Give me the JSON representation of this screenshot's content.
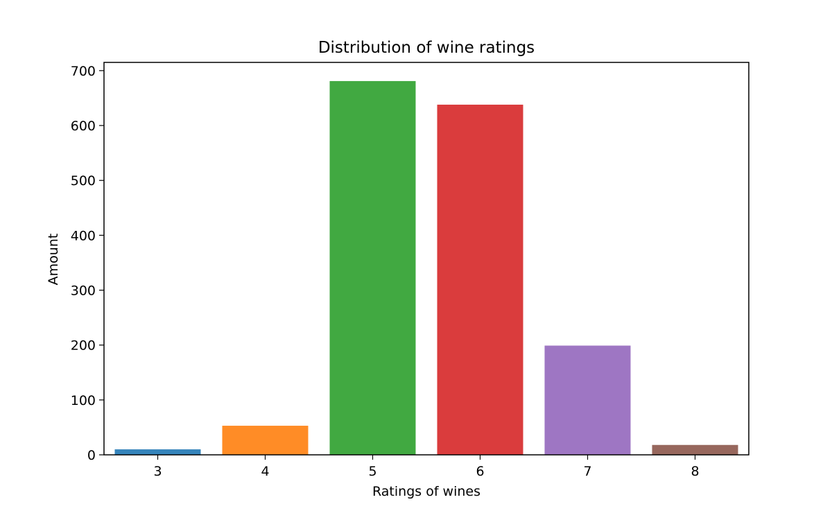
{
  "chart_data": {
    "type": "bar",
    "title": "Distribution of wine ratings",
    "xlabel": "Ratings of wines",
    "ylabel": "Amount",
    "categories": [
      "3",
      "4",
      "5",
      "6",
      "7",
      "8"
    ],
    "values": [
      10,
      53,
      681,
      638,
      199,
      18
    ],
    "colors": [
      "#1f77b4",
      "#ff7f0e",
      "#2ca02c",
      "#d62728",
      "#9467bd",
      "#8c564b"
    ],
    "bar_opacity": 0.9,
    "ylim": [
      0,
      715
    ],
    "yticks": [
      0,
      100,
      200,
      300,
      400,
      500,
      600,
      700
    ],
    "grid": false,
    "legend": "none"
  }
}
